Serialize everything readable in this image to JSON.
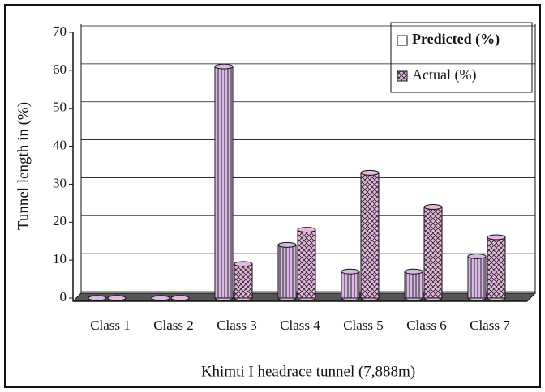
{
  "chart_data": {
    "type": "bar",
    "title": "Khimti I headrace tunnel (7,888m)",
    "y_label": "Tunnel length in (%)",
    "categories": [
      "Class 1",
      "Class 2",
      "Class 3",
      "Class 4",
      "Class 5",
      "Class 6",
      "Class 7"
    ],
    "series": [
      {
        "name": "Predicted (%)",
        "color": "#d9b8e6",
        "values": [
          0,
          0,
          61,
          14,
          7,
          7,
          11
        ]
      },
      {
        "name": "Actual (%)",
        "color": "#e6b8e0",
        "values": [
          0,
          0,
          9,
          18,
          33,
          24,
          16
        ]
      }
    ],
    "ylim": [
      0,
      70
    ],
    "yticks": [
      0,
      10,
      20,
      30,
      40,
      50,
      60,
      70
    ],
    "grid": true,
    "legend": "top-right"
  }
}
